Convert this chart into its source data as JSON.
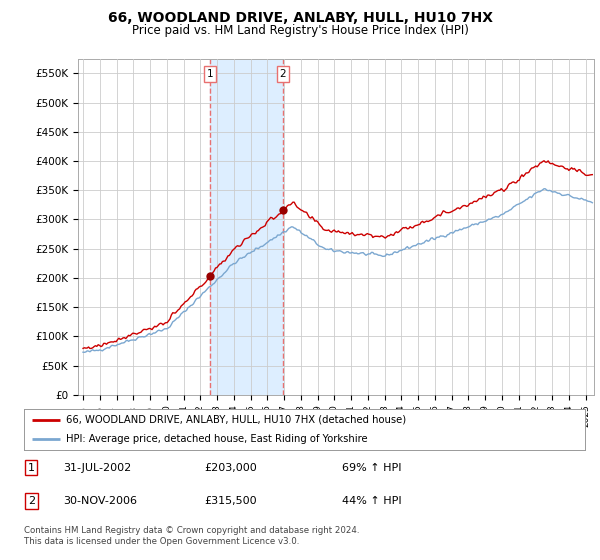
{
  "title": "66, WOODLAND DRIVE, ANLABY, HULL, HU10 7HX",
  "subtitle": "Price paid vs. HM Land Registry's House Price Index (HPI)",
  "title_fontsize": 10,
  "subtitle_fontsize": 8.5,
  "ylabel_ticks": [
    "£0",
    "£50K",
    "£100K",
    "£150K",
    "£200K",
    "£250K",
    "£300K",
    "£350K",
    "£400K",
    "£450K",
    "£500K",
    "£550K"
  ],
  "ytick_values": [
    0,
    50000,
    100000,
    150000,
    200000,
    250000,
    300000,
    350000,
    400000,
    450000,
    500000,
    550000
  ],
  "ylim": [
    0,
    575000
  ],
  "xlim_start": 1994.7,
  "xlim_end": 2025.5,
  "transaction1_date": 2002.58,
  "transaction1_price": 203000,
  "transaction2_date": 2006.92,
  "transaction2_price": 315500,
  "red_line_color": "#cc0000",
  "blue_line_color": "#7ba7d0",
  "marker_color": "#990000",
  "vline_color": "#e87070",
  "band_color": "#ddeeff",
  "legend_label1": "66, WOODLAND DRIVE, ANLABY, HULL, HU10 7HX (detached house)",
  "legend_label2": "HPI: Average price, detached house, East Riding of Yorkshire",
  "table_row1": [
    "1",
    "31-JUL-2002",
    "£203,000",
    "69% ↑ HPI"
  ],
  "table_row2": [
    "2",
    "30-NOV-2006",
    "£315,500",
    "44% ↑ HPI"
  ],
  "footer": "Contains HM Land Registry data © Crown copyright and database right 2024.\nThis data is licensed under the Open Government Licence v3.0.",
  "background_color": "#ffffff",
  "grid_color": "#cccccc"
}
